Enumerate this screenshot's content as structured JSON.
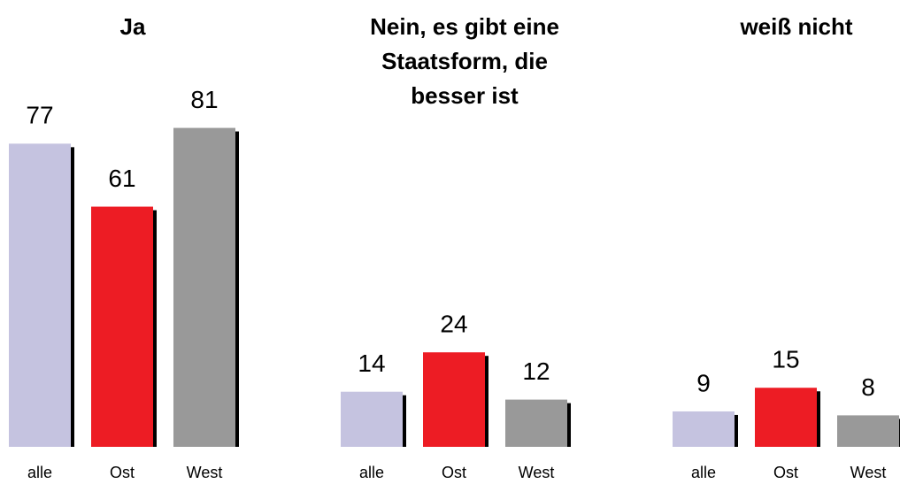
{
  "chart_data": [
    {
      "type": "bar",
      "title": [
        "Ja"
      ],
      "categories": [
        "alle",
        "Ost",
        "West"
      ],
      "values": [
        77,
        61,
        81
      ],
      "colors": [
        "#c5c3e0",
        "#ed1c24",
        "#999999"
      ]
    },
    {
      "type": "bar",
      "title": [
        "Nein, es gibt eine",
        "Staatsform, die",
        "besser ist"
      ],
      "categories": [
        "alle",
        "Ost",
        "West"
      ],
      "values": [
        14,
        24,
        12
      ],
      "colors": [
        "#c5c3e0",
        "#ed1c24",
        "#999999"
      ]
    },
    {
      "type": "bar",
      "title": [
        "weiß nicht"
      ],
      "categories": [
        "alle",
        "Ost",
        "West"
      ],
      "values": [
        9,
        15,
        8
      ],
      "colors": [
        "#c5c3e0",
        "#ed1c24",
        "#999999"
      ]
    }
  ]
}
